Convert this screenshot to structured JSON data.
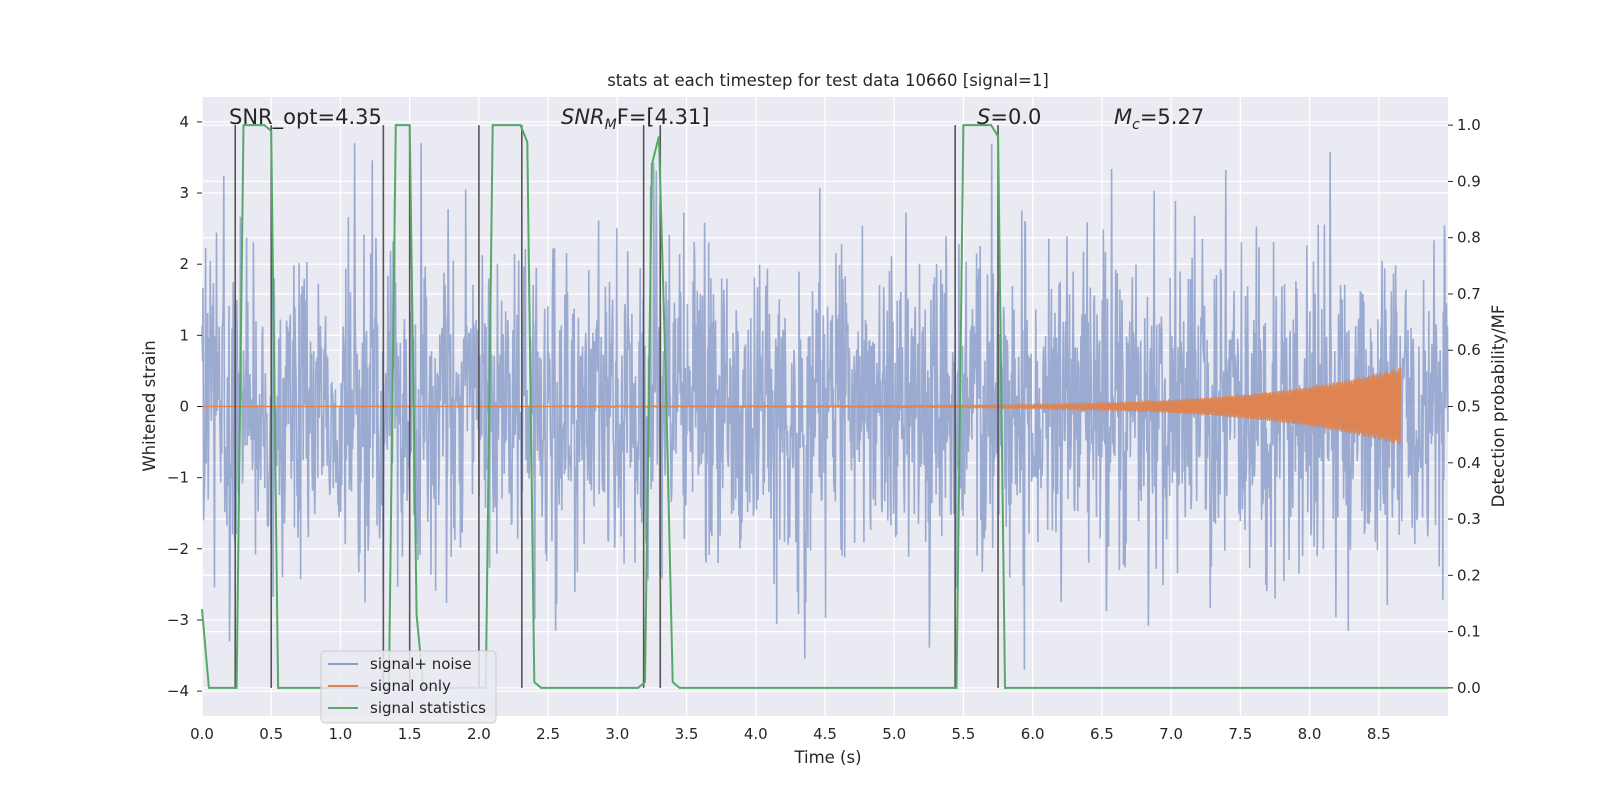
{
  "chart_data": {
    "type": "line",
    "title": "stats at each timestep for test data 10660 [signal=1]",
    "xlabel": "Time (s)",
    "ylabel_left": "Whitened strain",
    "ylabel_right": "Detection probability/MF",
    "xlim": [
      0.0,
      9.0
    ],
    "ylim_left": [
      -4.35,
      4.35
    ],
    "ylim_right": [
      -0.05,
      1.05
    ],
    "grid": true,
    "legend_position": "lower-left",
    "x_ticks": [
      "0.0",
      "0.5",
      "1.0",
      "1.5",
      "2.0",
      "2.5",
      "3.0",
      "3.5",
      "4.0",
      "4.5",
      "5.0",
      "5.5",
      "6.0",
      "6.5",
      "7.0",
      "7.5",
      "8.0",
      "8.5"
    ],
    "y_ticks_left": [
      "4",
      "3",
      "2",
      "1",
      "0",
      "−1",
      "−2",
      "−3",
      "−4"
    ],
    "y_ticks_right": [
      "1.0",
      "0.9",
      "0.8",
      "0.7",
      "0.6",
      "0.5",
      "0.4",
      "0.3",
      "0.2",
      "0.1",
      "0.0"
    ],
    "annotations": {
      "snr_opt": "SNR_opt=4.35",
      "snr_mf_sym": "SNR",
      "snr_mf_sub": "M",
      "snr_mf_rest": "F=[4.31]",
      "s_sym": "S",
      "s_val": "=0.0",
      "mc_sym": "M",
      "mc_sub": "c",
      "mc_val": "=5.27"
    },
    "series": [
      {
        "name": "signal+ noise",
        "axis": "left",
        "color": "#8c9fca",
        "description_envelope": {
          "typical_abs_max": 2.4,
          "peak_abs_max": 3.7
        }
      },
      {
        "name": "signal only",
        "axis": "left",
        "color": "#dd8452",
        "chirp": {
          "start": 2.6,
          "end": 8.66,
          "amp_start": 0.01,
          "amp_end": 0.55
        }
      },
      {
        "name": "signal statistics",
        "axis": "right",
        "color": "#55a868",
        "x": [
          0.0,
          0.05,
          0.1,
          0.15,
          0.2,
          0.25,
          0.3,
          0.35,
          0.4,
          0.45,
          0.5,
          0.55,
          0.6,
          0.65,
          0.7,
          0.75,
          0.8,
          0.85,
          0.9,
          0.95,
          1.0,
          1.05,
          1.1,
          1.15,
          1.2,
          1.25,
          1.3,
          1.35,
          1.4,
          1.45,
          1.5,
          1.55,
          1.6,
          1.65,
          1.7,
          1.75,
          1.8,
          1.85,
          1.9,
          1.95,
          2.0,
          2.05,
          2.1,
          2.15,
          2.2,
          2.25,
          2.3,
          2.35,
          2.4,
          2.45,
          2.5,
          2.55,
          2.6,
          2.65,
          2.7,
          2.75,
          2.8,
          2.85,
          2.9,
          2.95,
          3.0,
          3.05,
          3.1,
          3.15,
          3.2,
          3.25,
          3.3,
          3.35,
          3.4,
          3.45,
          3.5,
          3.55,
          3.6,
          3.65,
          3.7,
          3.75,
          3.8,
          3.85,
          3.9,
          3.95,
          4.0,
          4.05,
          4.1,
          4.15,
          4.2,
          4.25,
          4.3,
          4.35,
          4.4,
          4.45,
          4.5,
          4.55,
          4.6,
          4.65,
          4.7,
          4.75,
          4.8,
          4.85,
          4.9,
          4.95,
          5.0,
          5.05,
          5.1,
          5.15,
          5.2,
          5.25,
          5.3,
          5.35,
          5.4,
          5.45,
          5.5,
          5.55,
          5.6,
          5.65,
          5.7,
          5.75,
          5.8,
          5.85,
          5.9,
          5.95,
          6.0,
          6.05,
          6.1,
          6.15,
          6.2,
          6.25,
          6.3,
          6.35,
          6.4,
          6.45,
          6.5,
          6.55,
          6.6,
          6.65,
          6.7,
          6.75,
          6.8,
          6.85,
          6.9,
          6.95,
          7.0,
          7.05,
          7.1,
          7.15,
          7.2,
          7.25,
          7.3,
          7.35,
          7.4,
          7.45,
          7.5,
          7.55,
          7.6,
          7.65,
          7.7,
          7.75,
          7.8,
          7.85,
          7.9,
          7.95,
          8.0,
          8.05,
          8.1,
          8.15,
          8.2,
          8.25,
          8.3,
          8.35,
          8.4,
          8.45,
          8.5,
          8.55,
          8.6,
          8.65,
          8.7,
          8.75,
          8.8,
          8.85,
          8.9,
          8.95,
          9.0
        ],
        "y": [
          0.14,
          0.0,
          0.0,
          0.0,
          0.0,
          0.0,
          1.0,
          1.0,
          1.0,
          1.0,
          0.99,
          0.0,
          0.0,
          0.0,
          0.0,
          0.0,
          0.0,
          0.0,
          0.0,
          0.0,
          0.0,
          0.0,
          0.0,
          0.0,
          0.0,
          0.0,
          0.0,
          0.0,
          1.0,
          1.0,
          1.0,
          0.13,
          0.0,
          0.0,
          0.0,
          0.0,
          0.0,
          0.0,
          0.0,
          0.0,
          0.0,
          0.0,
          1.0,
          1.0,
          1.0,
          1.0,
          1.0,
          0.97,
          0.01,
          0.0,
          0.0,
          0.0,
          0.0,
          0.0,
          0.0,
          0.0,
          0.0,
          0.0,
          0.0,
          0.0,
          0.0,
          0.0,
          0.0,
          0.0,
          0.01,
          0.93,
          0.98,
          0.55,
          0.01,
          0.0,
          0.0,
          0.0,
          0.0,
          0.0,
          0.0,
          0.0,
          0.0,
          0.0,
          0.0,
          0.0,
          0.0,
          0.0,
          0.0,
          0.0,
          0.0,
          0.0,
          0.0,
          0.0,
          0.0,
          0.0,
          0.0,
          0.0,
          0.0,
          0.0,
          0.0,
          0.0,
          0.0,
          0.0,
          0.0,
          0.0,
          0.0,
          0.0,
          0.0,
          0.0,
          0.0,
          0.0,
          0.0,
          0.0,
          0.0,
          0.0,
          1.0,
          1.0,
          1.0,
          1.0,
          1.0,
          0.98,
          0.0,
          0.0,
          0.0,
          0.0,
          0.0,
          0.0,
          0.0,
          0.0,
          0.0,
          0.0,
          0.0,
          0.0,
          0.0,
          0.0,
          0.0,
          0.0,
          0.0,
          0.0,
          0.0,
          0.0,
          0.0,
          0.0,
          0.0,
          0.0,
          0.0,
          0.0,
          0.0,
          0.0,
          0.0,
          0.0,
          0.0,
          0.0,
          0.0,
          0.0,
          0.0,
          0.0,
          0.0,
          0.0,
          0.0,
          0.0,
          0.0,
          0.0,
          0.0,
          0.0,
          0.0,
          0.0,
          0.0,
          0.0,
          0.0,
          0.0,
          0.0,
          0.0,
          0.0,
          0.0,
          0.0,
          0.0,
          0.0,
          0.0,
          0.0,
          0.0,
          0.0,
          0.0,
          0.0,
          0.0,
          0.0
        ]
      }
    ],
    "vertical_lines": {
      "color": "#555555",
      "x": [
        0.24,
        0.5,
        1.31,
        1.5,
        2.0,
        2.31,
        3.19,
        3.31,
        5.44,
        5.75
      ]
    },
    "colors": {
      "axes_background": "#eaeaf2",
      "grid": "#ffffff"
    }
  }
}
